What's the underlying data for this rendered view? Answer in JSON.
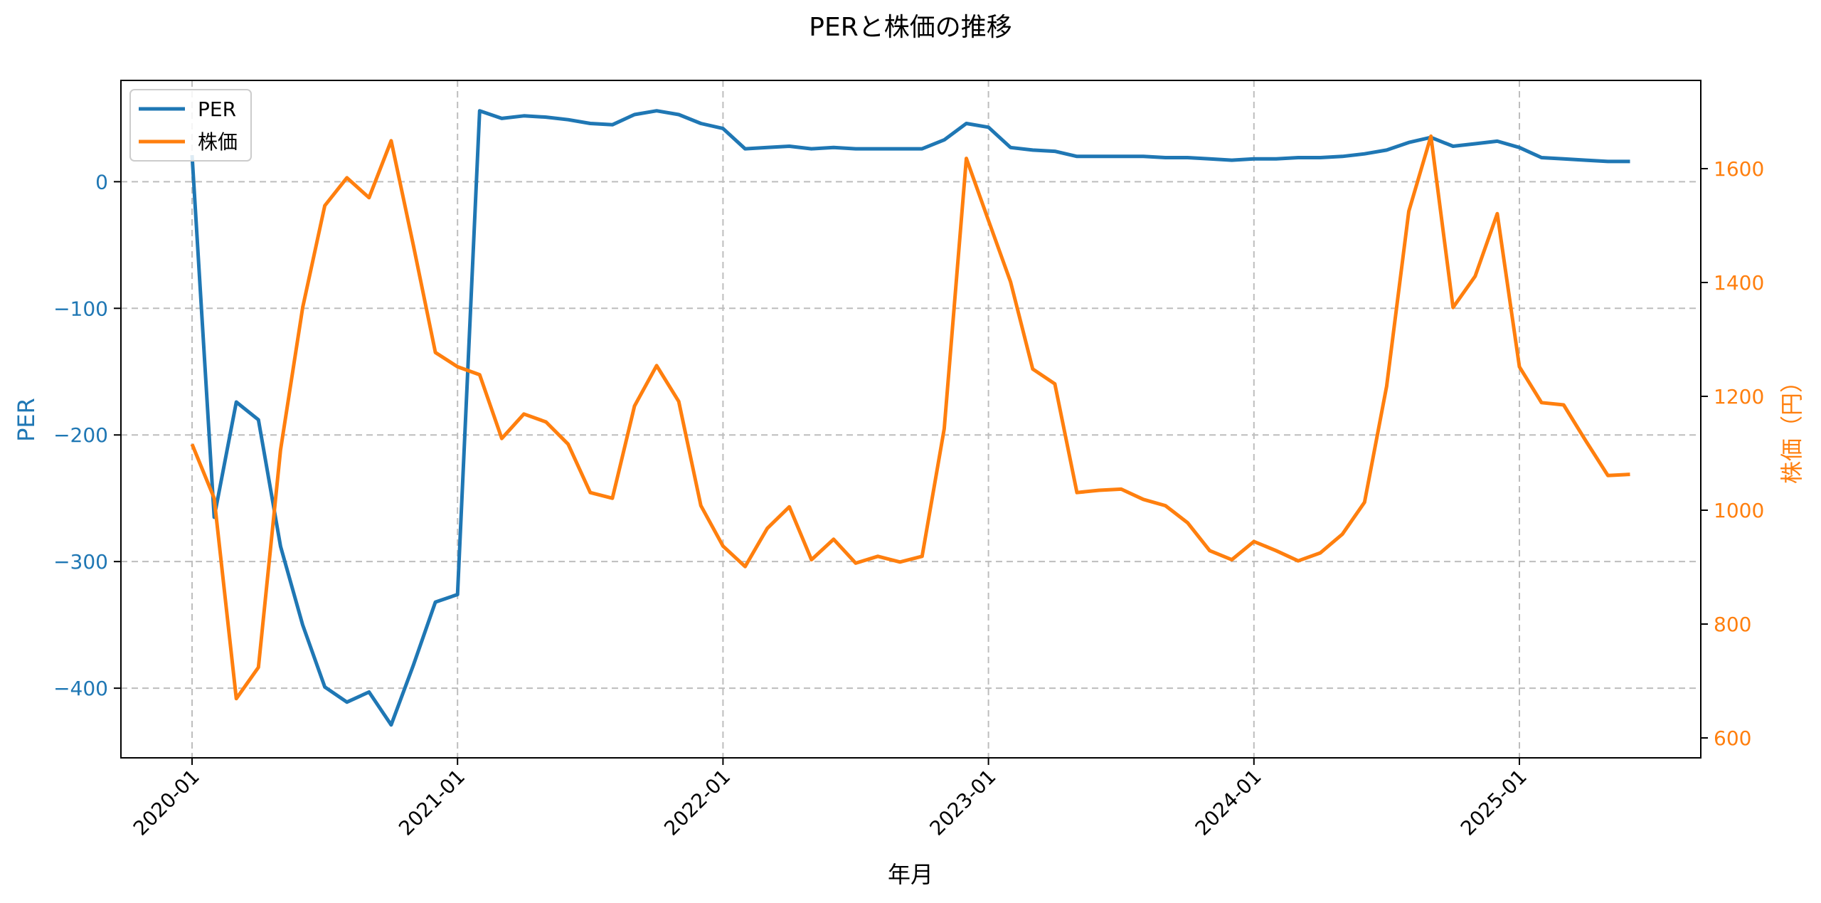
{
  "chart_data": {
    "type": "line",
    "title": "PERと株価の推移",
    "xlabel": "年月",
    "ylabel_left": "PER",
    "ylabel_right": "株価（円）",
    "x_tick_labels": [
      "2020-01",
      "2021-01",
      "2022-01",
      "2023-01",
      "2024-01",
      "2025-01"
    ],
    "y_left_ticks": [
      0,
      -100,
      -200,
      -300,
      -400
    ],
    "y_right_ticks": [
      600,
      800,
      1000,
      1200,
      1400,
      1600
    ],
    "y_left_range": [
      -455,
      80
    ],
    "y_right_range": [
      565,
      1755
    ],
    "grid": true,
    "legend_position": "upper left",
    "x_start": "2020-01",
    "x_frequency": "monthly",
    "series": [
      {
        "name": "PER",
        "axis": "left",
        "color": "#1f77b4",
        "values": [
          21,
          -265,
          -174,
          -188,
          -288,
          -350,
          -399,
          -411,
          -403,
          -429,
          -382,
          -332,
          -326,
          56,
          50,
          52,
          51,
          49,
          46,
          45,
          53,
          56,
          53,
          46,
          42,
          26,
          27,
          28,
          26,
          27,
          26,
          26,
          26,
          26,
          33,
          46,
          43,
          27,
          25,
          24,
          20,
          20,
          20,
          20,
          19,
          19,
          18,
          17,
          18,
          18,
          19,
          19,
          20,
          22,
          25,
          31,
          35,
          28,
          30,
          32,
          27,
          19,
          18,
          17,
          16,
          16
        ]
      },
      {
        "name": "株価",
        "axis": "right",
        "color": "#ff7f0e",
        "values": [
          1116,
          1021,
          669,
          724,
          1106,
          1356,
          1535,
          1584,
          1549,
          1649,
          1466,
          1277,
          1252,
          1238,
          1126,
          1169,
          1155,
          1116,
          1031,
          1021,
          1183,
          1254,
          1191,
          1008,
          937,
          901,
          968,
          1006,
          913,
          949,
          907,
          919,
          909,
          919,
          1143,
          1618,
          1509,
          1401,
          1248,
          1222,
          1031,
          1035,
          1037,
          1019,
          1008,
          978,
          929,
          913,
          945,
          929,
          911,
          925,
          958,
          1014,
          1218,
          1525,
          1657,
          1356,
          1411,
          1521,
          1252,
          1189,
          1185,
          1122,
          1061,
          1063
        ]
      }
    ]
  },
  "legend": {
    "items": [
      {
        "label": "PER",
        "color": "#1f77b4"
      },
      {
        "label": "株価",
        "color": "#ff7f0e"
      }
    ]
  }
}
